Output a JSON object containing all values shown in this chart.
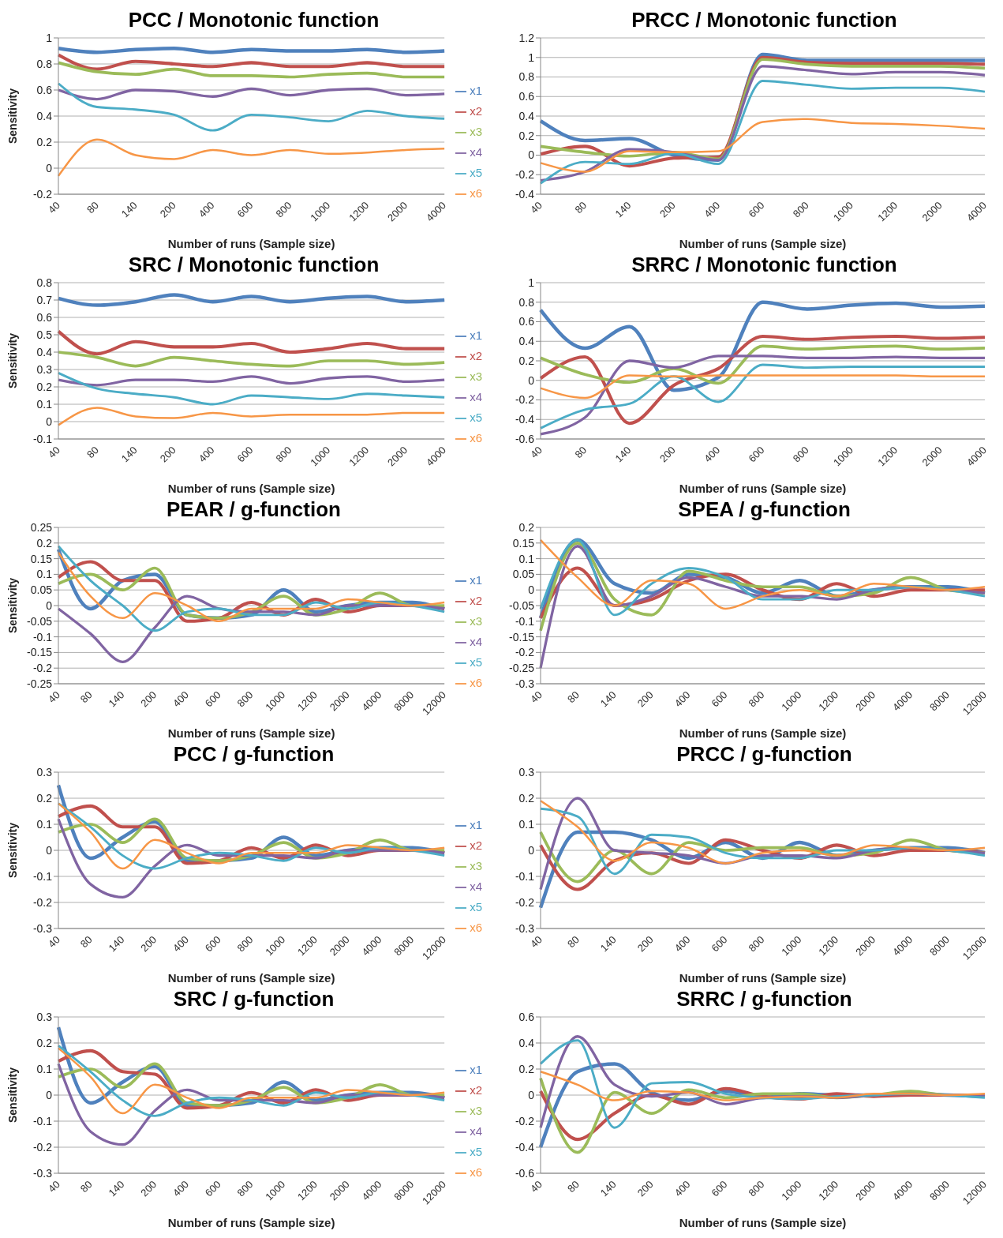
{
  "chart_data": [
    {
      "type": "line",
      "title": "PCC / Monotonic function",
      "xlabel": "Number of runs (Sample size)",
      "ylabel": "Sensitivity",
      "categories": [
        "40",
        "80",
        "140",
        "200",
        "400",
        "600",
        "800",
        "1000",
        "1200",
        "2000",
        "4000"
      ],
      "ylim": [
        -0.2,
        1
      ],
      "yticks": [
        -0.2,
        0,
        0.2,
        0.4,
        0.6,
        0.8,
        1
      ],
      "grid": "y",
      "legend": "right",
      "series": [
        {
          "name": "x1",
          "color": "#4f81bd",
          "values": [
            0.92,
            0.89,
            0.91,
            0.92,
            0.89,
            0.91,
            0.9,
            0.9,
            0.91,
            0.89,
            0.9
          ]
        },
        {
          "name": "x2",
          "color": "#c0504d",
          "values": [
            0.87,
            0.76,
            0.82,
            0.8,
            0.78,
            0.81,
            0.78,
            0.78,
            0.81,
            0.78,
            0.78
          ]
        },
        {
          "name": "x3",
          "color": "#9bbb59",
          "values": [
            0.81,
            0.74,
            0.72,
            0.76,
            0.71,
            0.71,
            0.7,
            0.72,
            0.73,
            0.7,
            0.7
          ]
        },
        {
          "name": "x4",
          "color": "#8064a2",
          "values": [
            0.6,
            0.53,
            0.6,
            0.59,
            0.55,
            0.61,
            0.56,
            0.6,
            0.61,
            0.56,
            0.57
          ]
        },
        {
          "name": "x5",
          "color": "#4bacc6",
          "values": [
            0.65,
            0.47,
            0.45,
            0.41,
            0.29,
            0.41,
            0.39,
            0.36,
            0.44,
            0.4,
            0.38
          ]
        },
        {
          "name": "x6",
          "color": "#f79646",
          "values": [
            -0.06,
            0.22,
            0.1,
            0.07,
            0.14,
            0.1,
            0.14,
            0.11,
            0.12,
            0.14,
            0.15
          ]
        }
      ]
    },
    {
      "type": "line",
      "title": "PRCC / Monotonic function",
      "xlabel": "Number of runs (Sample size)",
      "categories": [
        "40",
        "80",
        "140",
        "200",
        "400",
        "600",
        "800",
        "1000",
        "1200",
        "2000",
        "4000"
      ],
      "ylim": [
        -0.4,
        1.2
      ],
      "yticks": [
        -0.4,
        -0.2,
        0,
        0.2,
        0.4,
        0.6,
        0.8,
        1,
        1.2
      ],
      "grid": "y",
      "series": [
        {
          "color": "#4f81bd",
          "values": [
            0.35,
            0.15,
            0.17,
            0.0,
            -0.05,
            1.03,
            0.97,
            0.97,
            0.97,
            0.97,
            0.97
          ]
        },
        {
          "color": "#c0504d",
          "values": [
            0.01,
            0.09,
            -0.11,
            -0.03,
            -0.02,
            1.0,
            0.95,
            0.94,
            0.94,
            0.94,
            0.93
          ]
        },
        {
          "color": "#9bbb59",
          "values": [
            0.09,
            0.03,
            -0.01,
            0.03,
            -0.04,
            0.98,
            0.93,
            0.91,
            0.91,
            0.91,
            0.89
          ]
        },
        {
          "color": "#8064a2",
          "values": [
            -0.26,
            -0.17,
            0.06,
            0.03,
            -0.05,
            0.91,
            0.87,
            0.83,
            0.85,
            0.85,
            0.82
          ]
        },
        {
          "color": "#4bacc6",
          "values": [
            -0.29,
            -0.07,
            -0.09,
            0.02,
            -0.09,
            0.76,
            0.72,
            0.68,
            0.69,
            0.69,
            0.65
          ]
        },
        {
          "color": "#f79646",
          "values": [
            -0.08,
            -0.17,
            0.04,
            0.03,
            0.04,
            0.34,
            0.37,
            0.33,
            0.32,
            0.3,
            0.27
          ]
        }
      ]
    },
    {
      "type": "line",
      "title": "SRC / Monotonic function",
      "xlabel": "Number of runs (Sample size)",
      "ylabel": "Sensitivity",
      "categories": [
        "40",
        "80",
        "140",
        "200",
        "400",
        "600",
        "800",
        "1000",
        "1200",
        "2000",
        "4000"
      ],
      "ylim": [
        -0.1,
        0.8
      ],
      "yticks": [
        -0.1,
        0,
        0.1,
        0.2,
        0.3,
        0.4,
        0.5,
        0.6,
        0.7,
        0.8
      ],
      "grid": "y",
      "legend": "right",
      "series": [
        {
          "name": "x1",
          "color": "#4f81bd",
          "values": [
            0.71,
            0.67,
            0.69,
            0.73,
            0.69,
            0.72,
            0.69,
            0.71,
            0.72,
            0.69,
            0.7
          ]
        },
        {
          "name": "x2",
          "color": "#c0504d",
          "values": [
            0.52,
            0.39,
            0.46,
            0.43,
            0.43,
            0.45,
            0.4,
            0.42,
            0.45,
            0.42,
            0.42
          ]
        },
        {
          "name": "x3",
          "color": "#9bbb59",
          "values": [
            0.4,
            0.37,
            0.32,
            0.37,
            0.35,
            0.33,
            0.32,
            0.35,
            0.35,
            0.33,
            0.34
          ]
        },
        {
          "name": "x4",
          "color": "#8064a2",
          "values": [
            0.24,
            0.21,
            0.24,
            0.24,
            0.23,
            0.26,
            0.22,
            0.25,
            0.26,
            0.23,
            0.24
          ]
        },
        {
          "name": "x5",
          "color": "#4bacc6",
          "values": [
            0.28,
            0.19,
            0.16,
            0.14,
            0.1,
            0.15,
            0.14,
            0.13,
            0.16,
            0.15,
            0.14
          ]
        },
        {
          "name": "x6",
          "color": "#f79646",
          "values": [
            -0.02,
            0.08,
            0.03,
            0.02,
            0.05,
            0.03,
            0.04,
            0.04,
            0.04,
            0.05,
            0.05
          ]
        }
      ]
    },
    {
      "type": "line",
      "title": "SRRC / Monotonic function",
      "xlabel": "Number of runs (Sample size)",
      "categories": [
        "40",
        "80",
        "140",
        "200",
        "400",
        "600",
        "800",
        "1000",
        "1200",
        "2000",
        "4000"
      ],
      "ylim": [
        -0.6,
        1
      ],
      "yticks": [
        -0.6,
        -0.4,
        -0.2,
        0,
        0.2,
        0.4,
        0.6,
        0.8,
        1
      ],
      "grid": "y",
      "series": [
        {
          "color": "#4f81bd",
          "values": [
            0.72,
            0.33,
            0.55,
            -0.1,
            0.03,
            0.8,
            0.73,
            0.77,
            0.79,
            0.75,
            0.76
          ]
        },
        {
          "color": "#c0504d",
          "values": [
            0.02,
            0.24,
            -0.44,
            -0.05,
            0.12,
            0.45,
            0.42,
            0.44,
            0.45,
            0.43,
            0.44
          ]
        },
        {
          "color": "#9bbb59",
          "values": [
            0.23,
            0.06,
            -0.02,
            0.12,
            -0.03,
            0.35,
            0.32,
            0.34,
            0.35,
            0.32,
            0.33
          ]
        },
        {
          "color": "#8064a2",
          "values": [
            -0.55,
            -0.38,
            0.2,
            0.13,
            0.25,
            0.25,
            0.23,
            0.23,
            0.24,
            0.23,
            0.23
          ]
        },
        {
          "color": "#4bacc6",
          "values": [
            -0.49,
            -0.3,
            -0.24,
            0.04,
            -0.22,
            0.16,
            0.13,
            0.14,
            0.14,
            0.14,
            0.14
          ]
        },
        {
          "color": "#f79646",
          "values": [
            -0.08,
            -0.18,
            0.05,
            0.04,
            0.05,
            0.05,
            0.05,
            0.05,
            0.05,
            0.04,
            0.04
          ]
        }
      ]
    },
    {
      "type": "line",
      "title": "PEAR / g-function",
      "xlabel": "Number of runs (Sample size)",
      "ylabel": "Sensitivity",
      "categories": [
        "40",
        "80",
        "140",
        "200",
        "400",
        "600",
        "800",
        "1000",
        "1200",
        "2000",
        "4000",
        "8000",
        "12000"
      ],
      "ylim": [
        -0.25,
        0.25
      ],
      "yticks": [
        -0.25,
        -0.2,
        -0.15,
        -0.1,
        -0.05,
        0,
        0.05,
        0.1,
        0.15,
        0.2,
        0.25
      ],
      "grid": "y",
      "legend": "right",
      "series": [
        {
          "name": "x1",
          "color": "#4f81bd",
          "values": [
            0.18,
            -0.01,
            0.08,
            0.1,
            -0.03,
            -0.04,
            -0.03,
            0.05,
            -0.02,
            0.0,
            0.01,
            0.01,
            -0.01
          ]
        },
        {
          "name": "x2",
          "color": "#c0504d",
          "values": [
            0.09,
            0.14,
            0.08,
            0.08,
            -0.05,
            -0.04,
            0.01,
            -0.03,
            0.02,
            -0.02,
            0.0,
            0.0,
            -0.01
          ]
        },
        {
          "name": "x3",
          "color": "#9bbb59",
          "values": [
            0.07,
            0.1,
            0.05,
            0.12,
            -0.03,
            -0.04,
            -0.02,
            0.03,
            -0.03,
            -0.01,
            0.04,
            0.0,
            0.0
          ]
        },
        {
          "name": "x4",
          "color": "#8064a2",
          "values": [
            -0.01,
            -0.09,
            -0.18,
            -0.07,
            0.03,
            -0.01,
            -0.02,
            -0.02,
            -0.03,
            0.0,
            0.0,
            0.0,
            -0.01
          ]
        },
        {
          "name": "x5",
          "color": "#4bacc6",
          "values": [
            0.19,
            0.08,
            0.0,
            -0.08,
            -0.02,
            -0.01,
            -0.03,
            -0.03,
            0.01,
            -0.01,
            0.01,
            0.0,
            -0.02
          ]
        },
        {
          "name": "x6",
          "color": "#f79646",
          "values": [
            0.17,
            0.03,
            -0.04,
            0.04,
            0.0,
            -0.05,
            -0.01,
            -0.01,
            -0.01,
            0.02,
            0.01,
            0.0,
            0.01
          ]
        }
      ]
    },
    {
      "type": "line",
      "title": "SPEA / g-function",
      "xlabel": "Number of runs (Sample size)",
      "categories": [
        "40",
        "80",
        "140",
        "200",
        "400",
        "600",
        "800",
        "1000",
        "1200",
        "2000",
        "4000",
        "8000",
        "12000"
      ],
      "ylim": [
        -0.3,
        0.2
      ],
      "yticks": [
        -0.3,
        -0.25,
        -0.2,
        -0.15,
        -0.1,
        -0.05,
        0,
        0.05,
        0.1,
        0.15,
        0.2
      ],
      "grid": "y",
      "series": [
        {
          "color": "#4f81bd",
          "values": [
            -0.09,
            0.16,
            0.02,
            -0.01,
            0.05,
            0.04,
            -0.01,
            0.03,
            -0.02,
            0.0,
            0.01,
            0.01,
            -0.01
          ]
        },
        {
          "color": "#c0504d",
          "values": [
            -0.09,
            0.07,
            -0.05,
            -0.03,
            0.03,
            0.05,
            0.0,
            -0.03,
            0.02,
            -0.02,
            0.0,
            0.0,
            0.0
          ]
        },
        {
          "color": "#9bbb59",
          "values": [
            -0.13,
            0.15,
            -0.03,
            -0.08,
            0.06,
            0.03,
            0.01,
            0.01,
            -0.02,
            -0.01,
            0.04,
            0.0,
            -0.01
          ]
        },
        {
          "color": "#8064a2",
          "values": [
            -0.25,
            0.14,
            -0.05,
            -0.02,
            0.04,
            0.01,
            -0.02,
            -0.02,
            -0.03,
            0.0,
            0.01,
            0.0,
            -0.01
          ]
        },
        {
          "color": "#4bacc6",
          "values": [
            -0.06,
            0.16,
            -0.08,
            0.02,
            0.07,
            0.04,
            -0.03,
            -0.03,
            0.0,
            0.0,
            0.01,
            0.0,
            -0.02
          ]
        },
        {
          "color": "#f79646",
          "values": [
            0.16,
            0.04,
            -0.05,
            0.03,
            0.02,
            -0.06,
            -0.02,
            0.0,
            -0.02,
            0.02,
            0.01,
            0.0,
            0.01
          ]
        }
      ]
    },
    {
      "type": "line",
      "title": "PCC / g-function",
      "xlabel": "Number of runs (Sample size)",
      "ylabel": "Sensitivity",
      "categories": [
        "40",
        "80",
        "140",
        "200",
        "400",
        "600",
        "800",
        "1000",
        "1200",
        "2000",
        "4000",
        "8000",
        "12000"
      ],
      "ylim": [
        -0.3,
        0.3
      ],
      "yticks": [
        -0.3,
        -0.2,
        -0.1,
        0,
        0.1,
        0.2,
        0.3
      ],
      "grid": "y",
      "legend": "right",
      "series": [
        {
          "name": "x1",
          "color": "#4f81bd",
          "values": [
            0.25,
            -0.03,
            0.05,
            0.11,
            -0.04,
            -0.04,
            -0.03,
            0.05,
            -0.02,
            0.0,
            0.01,
            0.01,
            -0.01
          ]
        },
        {
          "name": "x2",
          "color": "#c0504d",
          "values": [
            0.13,
            0.17,
            0.09,
            0.09,
            -0.05,
            -0.04,
            0.01,
            -0.03,
            0.02,
            -0.02,
            0.0,
            0.0,
            -0.01
          ]
        },
        {
          "name": "x3",
          "color": "#9bbb59",
          "values": [
            0.07,
            0.1,
            0.03,
            0.12,
            -0.03,
            -0.04,
            -0.02,
            0.03,
            -0.03,
            -0.01,
            0.04,
            0.0,
            0.0
          ]
        },
        {
          "name": "x4",
          "color": "#8064a2",
          "values": [
            0.12,
            -0.13,
            -0.18,
            -0.06,
            0.02,
            -0.02,
            -0.02,
            -0.02,
            -0.03,
            0.0,
            0.0,
            0.0,
            -0.01
          ]
        },
        {
          "name": "x5",
          "color": "#4bacc6",
          "values": [
            0.18,
            0.09,
            -0.02,
            -0.07,
            -0.03,
            -0.01,
            -0.02,
            -0.04,
            0.01,
            -0.01,
            0.01,
            0.0,
            -0.02
          ]
        },
        {
          "name": "x6",
          "color": "#f79646",
          "values": [
            0.18,
            0.07,
            -0.07,
            0.04,
            -0.01,
            -0.05,
            -0.01,
            -0.01,
            -0.01,
            0.02,
            0.01,
            0.0,
            0.01
          ]
        }
      ]
    },
    {
      "type": "line",
      "title": "PRCC / g-function",
      "xlabel": "Number of runs (Sample size)",
      "categories": [
        "40",
        "80",
        "140",
        "200",
        "400",
        "600",
        "800",
        "1000",
        "1200",
        "2000",
        "4000",
        "8000",
        "12000"
      ],
      "ylim": [
        -0.3,
        0.3
      ],
      "yticks": [
        -0.3,
        -0.2,
        -0.1,
        0,
        0.1,
        0.2,
        0.3
      ],
      "grid": "y",
      "series": [
        {
          "color": "#4f81bd",
          "values": [
            -0.22,
            0.07,
            0.07,
            0.04,
            -0.03,
            0.03,
            -0.03,
            0.03,
            -0.02,
            0.0,
            0.01,
            0.01,
            -0.01
          ]
        },
        {
          "color": "#c0504d",
          "values": [
            0.02,
            -0.15,
            -0.04,
            -0.01,
            -0.05,
            0.04,
            0.0,
            -0.03,
            0.02,
            -0.02,
            0.0,
            0.0,
            -0.01
          ]
        },
        {
          "color": "#9bbb59",
          "values": [
            0.07,
            -0.12,
            0.0,
            -0.09,
            0.03,
            0.0,
            0.01,
            0.01,
            -0.02,
            -0.01,
            0.04,
            0.0,
            -0.01
          ]
        },
        {
          "color": "#8064a2",
          "values": [
            -0.15,
            0.2,
            0.0,
            -0.01,
            -0.02,
            -0.05,
            -0.02,
            -0.02,
            -0.03,
            0.0,
            0.01,
            0.0,
            -0.01
          ]
        },
        {
          "color": "#4bacc6",
          "values": [
            0.16,
            0.13,
            -0.09,
            0.06,
            0.05,
            -0.01,
            -0.03,
            -0.03,
            0.0,
            0.0,
            0.01,
            0.0,
            -0.02
          ]
        },
        {
          "color": "#f79646",
          "values": [
            0.19,
            0.09,
            -0.04,
            0.03,
            0.01,
            -0.05,
            -0.01,
            0.0,
            -0.02,
            0.02,
            0.01,
            0.0,
            0.01
          ]
        }
      ]
    },
    {
      "type": "line",
      "title": "SRC / g-function",
      "xlabel": "Number of runs (Sample size)",
      "ylabel": "Sensitivity",
      "categories": [
        "40",
        "80",
        "140",
        "200",
        "400",
        "600",
        "800",
        "1000",
        "1200",
        "2000",
        "4000",
        "8000",
        "12000"
      ],
      "ylim": [
        -0.3,
        0.3
      ],
      "yticks": [
        -0.3,
        -0.2,
        -0.1,
        0,
        0.1,
        0.2,
        0.3
      ],
      "grid": "y",
      "legend": "right",
      "series": [
        {
          "name": "x1",
          "color": "#4f81bd",
          "values": [
            0.26,
            -0.03,
            0.05,
            0.11,
            -0.04,
            -0.04,
            -0.03,
            0.05,
            -0.02,
            0.0,
            0.01,
            0.01,
            -0.01
          ]
        },
        {
          "name": "x2",
          "color": "#c0504d",
          "values": [
            0.13,
            0.17,
            0.09,
            0.08,
            -0.05,
            -0.04,
            0.01,
            -0.03,
            0.02,
            -0.02,
            0.0,
            0.0,
            -0.01
          ]
        },
        {
          "name": "x3",
          "color": "#9bbb59",
          "values": [
            0.07,
            0.1,
            0.03,
            0.12,
            -0.03,
            -0.04,
            -0.02,
            0.03,
            -0.03,
            -0.01,
            0.04,
            0.0,
            0.0
          ]
        },
        {
          "name": "x4",
          "color": "#8064a2",
          "values": [
            0.12,
            -0.14,
            -0.19,
            -0.06,
            0.02,
            -0.02,
            -0.02,
            -0.02,
            -0.03,
            0.0,
            0.0,
            0.0,
            -0.01
          ]
        },
        {
          "name": "x5",
          "color": "#4bacc6",
          "values": [
            0.19,
            0.09,
            -0.02,
            -0.08,
            -0.03,
            -0.01,
            -0.02,
            -0.04,
            0.01,
            -0.01,
            0.01,
            0.0,
            -0.02
          ]
        },
        {
          "name": "x6",
          "color": "#f79646",
          "values": [
            0.18,
            0.07,
            -0.07,
            0.04,
            -0.01,
            -0.05,
            -0.01,
            -0.01,
            -0.01,
            0.02,
            0.01,
            0.0,
            0.01
          ]
        }
      ]
    },
    {
      "type": "line",
      "title": "SRRC / g-function",
      "xlabel": "Number of runs (Sample size)",
      "categories": [
        "40",
        "80",
        "140",
        "200",
        "400",
        "600",
        "800",
        "1000",
        "1200",
        "2000",
        "4000",
        "8000",
        "12000"
      ],
      "ylim": [
        -0.6,
        0.6
      ],
      "yticks": [
        -0.6,
        -0.4,
        -0.2,
        0,
        0.2,
        0.4,
        0.6
      ],
      "grid": "y",
      "series": [
        {
          "color": "#4f81bd",
          "values": [
            -0.4,
            0.18,
            0.24,
            0.02,
            -0.04,
            0.03,
            -0.02,
            0.01,
            0.0,
            0.0,
            0.01,
            0.0,
            -0.01
          ]
        },
        {
          "color": "#c0504d",
          "values": [
            0.03,
            -0.34,
            -0.14,
            0.0,
            -0.07,
            0.05,
            -0.01,
            -0.03,
            0.01,
            -0.01,
            0.0,
            0.0,
            0.0
          ]
        },
        {
          "color": "#9bbb59",
          "values": [
            0.13,
            -0.44,
            0.02,
            -0.14,
            0.04,
            -0.02,
            0.01,
            0.01,
            -0.02,
            0.0,
            0.03,
            0.0,
            0.0
          ]
        },
        {
          "color": "#8064a2",
          "values": [
            -0.25,
            0.45,
            0.08,
            -0.01,
            0.02,
            -0.07,
            -0.02,
            -0.01,
            -0.02,
            0.0,
            0.01,
            0.0,
            0.0
          ]
        },
        {
          "color": "#4bacc6",
          "values": [
            0.24,
            0.42,
            -0.25,
            0.09,
            0.1,
            0.01,
            -0.02,
            -0.03,
            -0.01,
            0.0,
            0.01,
            0.0,
            -0.02
          ]
        },
        {
          "color": "#f79646",
          "values": [
            0.18,
            0.08,
            -0.04,
            0.03,
            0.02,
            -0.04,
            -0.02,
            -0.01,
            -0.02,
            0.01,
            0.01,
            0.0,
            0.01
          ]
        }
      ]
    }
  ]
}
